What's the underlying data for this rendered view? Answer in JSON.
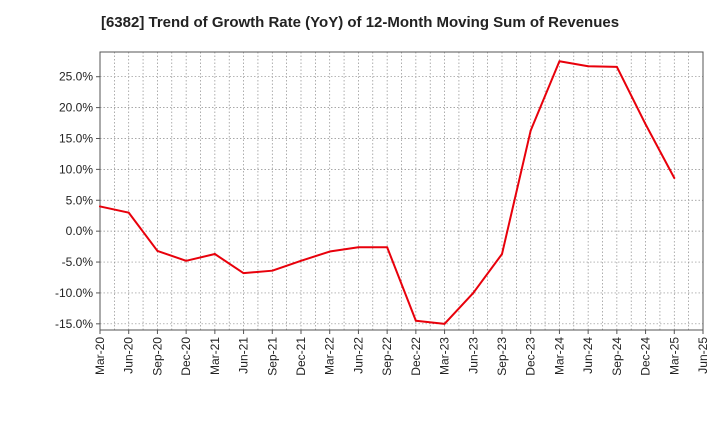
{
  "chart_data": {
    "type": "line",
    "title": "[6382]  Trend of Growth Rate (YoY) of 12-Month Moving Sum of Revenues",
    "xlabel": "",
    "ylabel": "",
    "x_tick_labels": [
      "Mar-20",
      "Jun-20",
      "Sep-20",
      "Dec-20",
      "Mar-21",
      "Jun-21",
      "Sep-21",
      "Dec-21",
      "Mar-22",
      "Jun-22",
      "Sep-22",
      "Dec-22",
      "Mar-23",
      "Jun-23",
      "Sep-23",
      "Dec-23",
      "Mar-24",
      "Jun-24",
      "Sep-24",
      "Dec-24",
      "Mar-25",
      "Jun-25"
    ],
    "y_ticks": [
      -15,
      -10,
      -5,
      0,
      5,
      10,
      15,
      20,
      25
    ],
    "y_tick_labels": [
      "-15.0%",
      "-10.0%",
      "-5.0%",
      "0.0%",
      "5.0%",
      "10.0%",
      "15.0%",
      "20.0%",
      "25.0%"
    ],
    "ylim": [
      -16,
      29
    ],
    "grid": true,
    "series": [
      {
        "color": "#e8000b",
        "points": [
          {
            "x": "Mar-20",
            "y": 4.0
          },
          {
            "x": "Jun-20",
            "y": 3.0
          },
          {
            "x": "Sep-20",
            "y": -3.2
          },
          {
            "x": "Dec-20",
            "y": -4.8
          },
          {
            "x": "Mar-21",
            "y": -3.7
          },
          {
            "x": "Jun-21",
            "y": -6.8
          },
          {
            "x": "Sep-21",
            "y": -6.4
          },
          {
            "x": "Dec-21",
            "y": -4.8
          },
          {
            "x": "Mar-22",
            "y": -3.3
          },
          {
            "x": "Jun-22",
            "y": -2.6
          },
          {
            "x": "Sep-22",
            "y": -2.6
          },
          {
            "x": "Dec-22",
            "y": -14.5
          },
          {
            "x": "Mar-23",
            "y": -15.0
          },
          {
            "x": "Jun-23",
            "y": -10.0
          },
          {
            "x": "Sep-23",
            "y": -3.7
          },
          {
            "x": "Dec-23",
            "y": 16.3
          },
          {
            "x": "Mar-24",
            "y": 27.5
          },
          {
            "x": "Jun-24",
            "y": 26.7
          },
          {
            "x": "Sep-24",
            "y": 26.6
          },
          {
            "x": "Dec-24",
            "y": 17.3
          },
          {
            "x": "Mar-25",
            "y": 8.6
          }
        ]
      }
    ]
  }
}
